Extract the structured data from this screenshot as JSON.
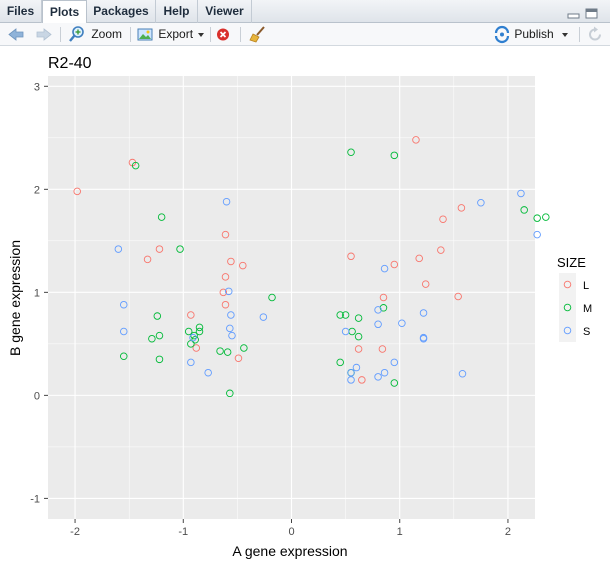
{
  "tabs": [
    {
      "label": "Files",
      "active": false
    },
    {
      "label": "Plots",
      "active": true
    },
    {
      "label": "Packages",
      "active": false
    },
    {
      "label": "Help",
      "active": false
    },
    {
      "label": "Viewer",
      "active": false
    }
  ],
  "toolbar": {
    "zoom_label": "Zoom",
    "export_label": "Export",
    "publish_label": "Publish"
  },
  "colors": {
    "L": "#F8766D",
    "M": "#00BA38",
    "S": "#619CFF",
    "panel": "#EBEBEB"
  },
  "chart_data": {
    "type": "scatter",
    "title": "R2-40",
    "xlabel": "A gene expression",
    "ylabel": "B gene expression",
    "xlim": [
      -2.25,
      2.25
    ],
    "ylim": [
      -1.2,
      3.1
    ],
    "x_ticks": [
      -2,
      -1,
      0,
      1,
      2
    ],
    "y_ticks": [
      -1,
      0,
      1,
      2,
      3
    ],
    "x_tick_labels": [
      "-2",
      "-1",
      "0",
      "1",
      "2"
    ],
    "y_tick_labels": [
      "-1",
      "0",
      "1",
      "2",
      "3"
    ],
    "grid": true,
    "legend": {
      "title": "SIZE",
      "position": "right",
      "entries": [
        "L",
        "M",
        "S"
      ]
    },
    "series": [
      {
        "name": "L",
        "points": [
          [
            -1.98,
            1.98
          ],
          [
            -1.47,
            2.26
          ],
          [
            -1.33,
            1.32
          ],
          [
            -1.22,
            1.42
          ],
          [
            -0.93,
            0.78
          ],
          [
            -0.88,
            0.46
          ],
          [
            -0.61,
            1.56
          ],
          [
            -0.61,
            1.15
          ],
          [
            -0.63,
            1.0
          ],
          [
            -0.61,
            0.88
          ],
          [
            -0.56,
            1.3
          ],
          [
            -0.45,
            1.26
          ],
          [
            -0.49,
            0.36
          ],
          [
            0.55,
            1.35
          ],
          [
            0.62,
            0.45
          ],
          [
            0.65,
            0.15
          ],
          [
            0.84,
            0.45
          ],
          [
            0.85,
            0.95
          ],
          [
            0.95,
            1.27
          ],
          [
            1.15,
            2.48
          ],
          [
            1.18,
            1.33
          ],
          [
            1.24,
            1.08
          ],
          [
            1.38,
            1.41
          ],
          [
            1.4,
            1.71
          ],
          [
            1.54,
            0.96
          ],
          [
            1.57,
            1.82
          ]
        ]
      },
      {
        "name": "M",
        "points": [
          [
            -1.44,
            2.23
          ],
          [
            -1.2,
            1.73
          ],
          [
            -1.03,
            1.42
          ],
          [
            -1.55,
            0.38
          ],
          [
            -1.24,
            0.77
          ],
          [
            -1.29,
            0.55
          ],
          [
            -1.22,
            0.58
          ],
          [
            -1.22,
            0.35
          ],
          [
            -0.95,
            0.62
          ],
          [
            -0.93,
            0.5
          ],
          [
            -0.9,
            0.58
          ],
          [
            -0.85,
            0.66
          ],
          [
            -0.85,
            0.62
          ],
          [
            -0.89,
            0.54
          ],
          [
            -0.66,
            0.43
          ],
          [
            -0.59,
            0.42
          ],
          [
            -0.44,
            0.46
          ],
          [
            -0.18,
            0.95
          ],
          [
            0.55,
            2.36
          ],
          [
            0.95,
            2.33
          ],
          [
            0.45,
            0.78
          ],
          [
            0.5,
            0.78
          ],
          [
            0.56,
            0.62
          ],
          [
            0.62,
            0.75
          ],
          [
            0.62,
            0.57
          ],
          [
            0.85,
            0.85
          ],
          [
            0.45,
            0.32
          ],
          [
            0.55,
            0.22
          ],
          [
            0.95,
            0.12
          ],
          [
            2.15,
            1.8
          ],
          [
            2.27,
            1.72
          ],
          [
            2.35,
            1.73
          ],
          [
            -0.57,
            0.02
          ]
        ]
      },
      {
        "name": "S",
        "points": [
          [
            -1.6,
            1.42
          ],
          [
            -1.55,
            0.88
          ],
          [
            -1.55,
            0.62
          ],
          [
            -0.93,
            0.32
          ],
          [
            -0.91,
            0.56
          ],
          [
            -0.77,
            0.22
          ],
          [
            -0.6,
            1.88
          ],
          [
            -0.58,
            1.01
          ],
          [
            -0.56,
            0.78
          ],
          [
            -0.57,
            0.65
          ],
          [
            -0.55,
            0.58
          ],
          [
            -0.26,
            0.76
          ],
          [
            0.5,
            0.62
          ],
          [
            0.55,
            0.22
          ],
          [
            0.55,
            0.15
          ],
          [
            0.6,
            0.27
          ],
          [
            0.8,
            0.69
          ],
          [
            0.8,
            0.83
          ],
          [
            0.8,
            0.18
          ],
          [
            0.86,
            1.23
          ],
          [
            0.86,
            0.22
          ],
          [
            0.95,
            0.32
          ],
          [
            1.02,
            0.7
          ],
          [
            1.22,
            0.8
          ],
          [
            1.22,
            0.55
          ],
          [
            1.22,
            0.56
          ],
          [
            1.58,
            0.21
          ],
          [
            1.75,
            1.87
          ],
          [
            2.12,
            1.96
          ],
          [
            2.27,
            1.56
          ]
        ]
      }
    ]
  }
}
